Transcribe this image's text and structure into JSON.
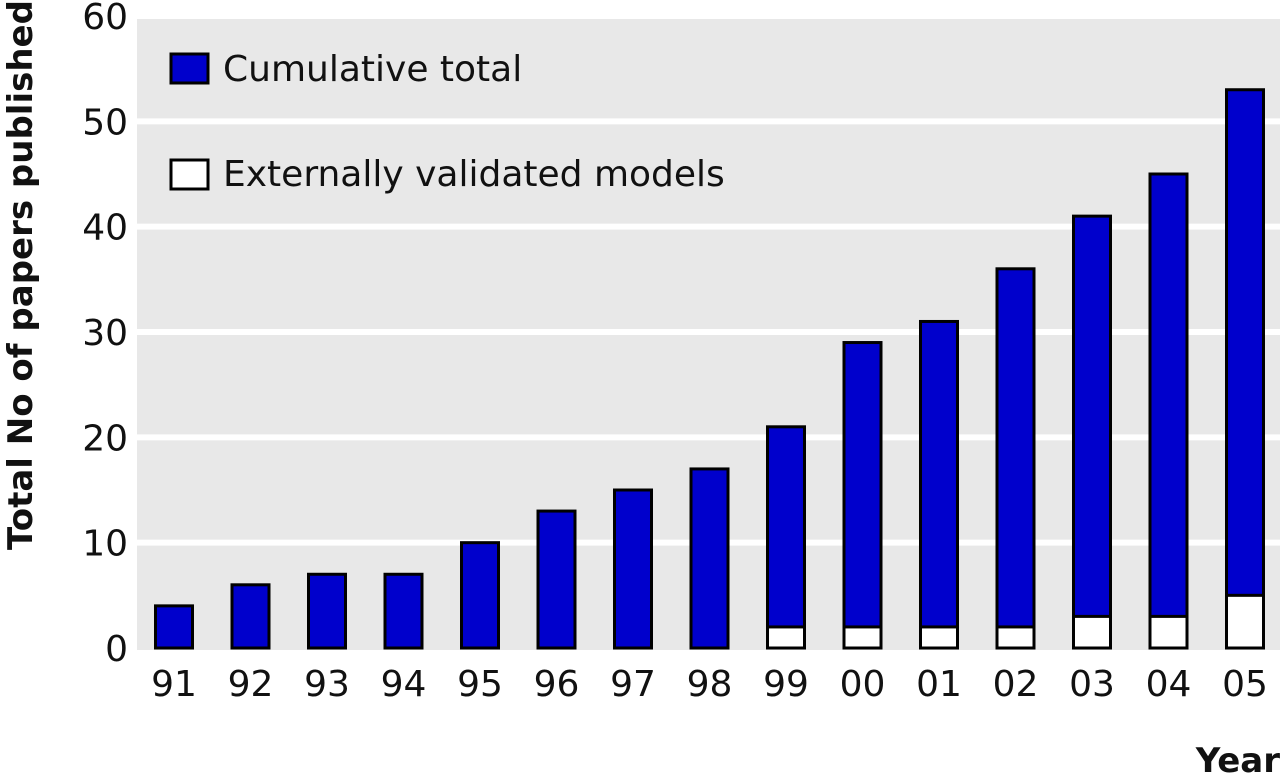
{
  "chart_data": {
    "type": "bar",
    "categories": [
      "91",
      "92",
      "93",
      "94",
      "95",
      "96",
      "97",
      "98",
      "99",
      "00",
      "01",
      "02",
      "03",
      "04",
      "05"
    ],
    "series": [
      {
        "name": "Cumulative total",
        "values": [
          4,
          6,
          7,
          7,
          10,
          13,
          15,
          17,
          21,
          29,
          31,
          36,
          41,
          45,
          53
        ],
        "color": "#0000cc"
      },
      {
        "name": "Externally validated models",
        "values": [
          0,
          0,
          0,
          0,
          0,
          0,
          0,
          0,
          2,
          2,
          2,
          2,
          3,
          3,
          5
        ],
        "color": "#ffffff"
      }
    ],
    "xlabel": "Year",
    "ylabel": "Total No of papers published",
    "ylim": [
      0,
      60
    ],
    "yticks": [
      "0",
      "10",
      "20",
      "30",
      "40",
      "50",
      "60"
    ],
    "grid": true,
    "legend_position": "top-left",
    "colors": {
      "plot_background": "#e8e8e8",
      "grid": "#ffffff",
      "bar_outline": "#000000"
    }
  }
}
